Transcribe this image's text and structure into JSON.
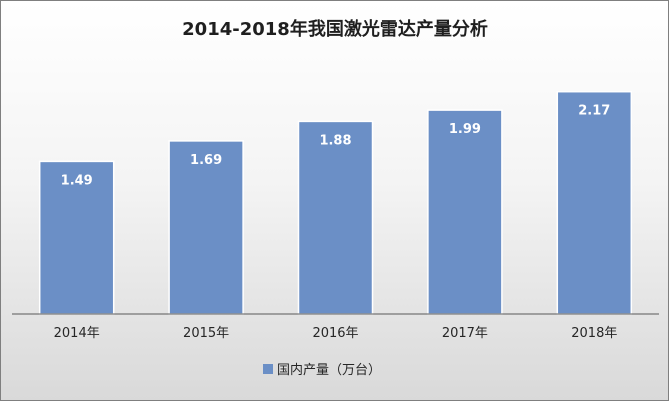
{
  "chart_data": {
    "type": "bar",
    "title": "2014-2018年我国激光雷达产量分析",
    "categories": [
      "2014年",
      "2015年",
      "2016年",
      "2017年",
      "2018年"
    ],
    "series": [
      {
        "name": "国内产量（万台）",
        "values": [
          1.49,
          1.69,
          1.88,
          1.99,
          2.17
        ],
        "data_labels": [
          "1.49",
          "1.69",
          "1.88",
          "1.99",
          "2.17"
        ],
        "color": "#6b8fc6"
      }
    ],
    "xlabel": "",
    "ylabel": "",
    "ylim": [
      0,
      2.45
    ],
    "grid": false,
    "legend": "bottom-center"
  }
}
